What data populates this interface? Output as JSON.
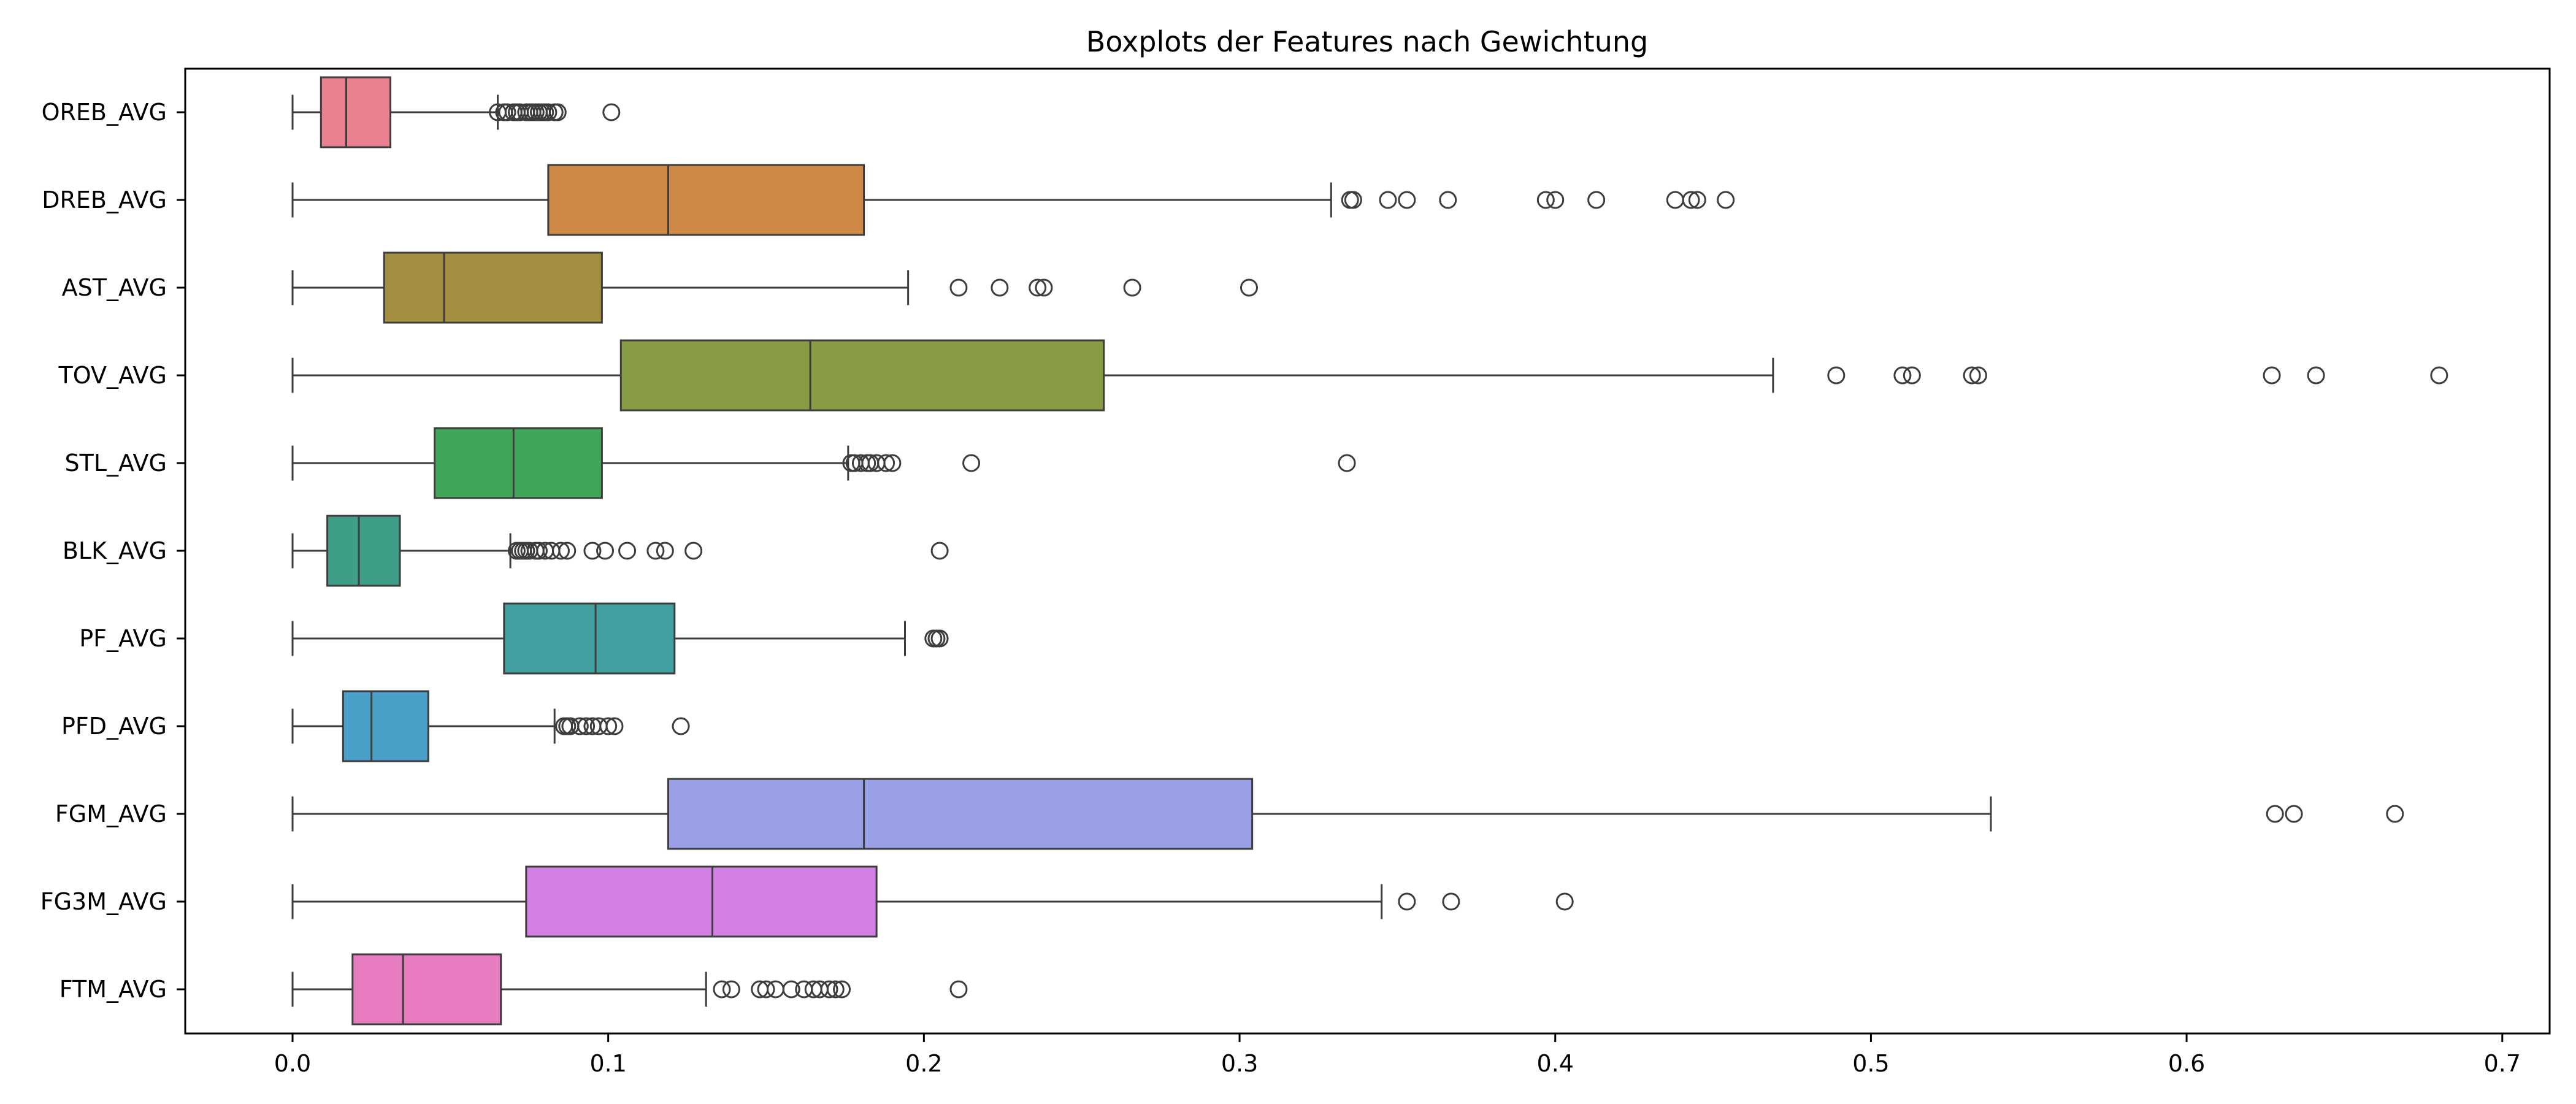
{
  "chart_data": {
    "type": "boxplot",
    "orientation": "horizontal",
    "title": "Boxplots der Features nach Gewichtung",
    "xlabel": "",
    "ylabel": "",
    "xlim": [
      -0.034,
      0.715
    ],
    "xticks": [
      0.0,
      0.1,
      0.2,
      0.3,
      0.4,
      0.5,
      0.6,
      0.7
    ],
    "xtick_labels": [
      "0.0",
      "0.1",
      "0.2",
      "0.3",
      "0.4",
      "0.5",
      "0.6",
      "0.7"
    ],
    "grid": false,
    "categories": [
      "OREB_AVG",
      "DREB_AVG",
      "AST_AVG",
      "TOV_AVG",
      "STL_AVG",
      "BLK_AVG",
      "PF_AVG",
      "PFD_AVG",
      "FGM_AVG",
      "FG3M_AVG",
      "FTM_AVG"
    ],
    "series": [
      {
        "name": "OREB_AVG",
        "color": "#e8808f",
        "whisker_low": 0.0,
        "q1": 0.009,
        "median": 0.017,
        "q3": 0.031,
        "whisker_high": 0.065,
        "outliers": [
          0.065,
          0.067,
          0.068,
          0.07,
          0.071,
          0.072,
          0.074,
          0.075,
          0.076,
          0.077,
          0.078,
          0.079,
          0.08,
          0.081,
          0.083,
          0.084,
          0.101
        ]
      },
      {
        "name": "DREB_AVG",
        "color": "#ce8947",
        "whisker_low": 0.0,
        "q1": 0.081,
        "median": 0.119,
        "q3": 0.181,
        "whisker_high": 0.329,
        "outliers": [
          0.335,
          0.336,
          0.347,
          0.353,
          0.366,
          0.397,
          0.4,
          0.413,
          0.438,
          0.443,
          0.445,
          0.454
        ]
      },
      {
        "name": "AST_AVG",
        "color": "#a38f3f",
        "whisker_low": 0.0,
        "q1": 0.029,
        "median": 0.048,
        "q3": 0.098,
        "whisker_high": 0.195,
        "outliers": [
          0.211,
          0.224,
          0.236,
          0.238,
          0.266,
          0.303
        ]
      },
      {
        "name": "TOV_AVG",
        "color": "#879c43",
        "whisker_low": 0.0,
        "q1": 0.104,
        "median": 0.164,
        "q3": 0.257,
        "whisker_high": 0.469,
        "outliers": [
          0.489,
          0.51,
          0.513,
          0.532,
          0.534,
          0.627,
          0.641,
          0.68
        ]
      },
      {
        "name": "STL_AVG",
        "color": "#42a65a",
        "whisker_low": 0.0,
        "q1": 0.045,
        "median": 0.07,
        "q3": 0.098,
        "whisker_high": 0.176,
        "outliers": [
          0.177,
          0.178,
          0.18,
          0.182,
          0.183,
          0.185,
          0.188,
          0.19,
          0.215,
          0.334
        ]
      },
      {
        "name": "BLK_AVG",
        "color": "#3e9e87",
        "whisker_low": 0.0,
        "q1": 0.011,
        "median": 0.021,
        "q3": 0.034,
        "whisker_high": 0.069,
        "outliers": [
          0.071,
          0.072,
          0.073,
          0.074,
          0.075,
          0.077,
          0.078,
          0.08,
          0.082,
          0.085,
          0.087,
          0.095,
          0.099,
          0.106,
          0.115,
          0.118,
          0.127,
          0.205
        ]
      },
      {
        "name": "PF_AVG",
        "color": "#43a0a1",
        "whisker_low": 0.0,
        "q1": 0.067,
        "median": 0.096,
        "q3": 0.121,
        "whisker_high": 0.194,
        "outliers": [
          0.203,
          0.204,
          0.205
        ]
      },
      {
        "name": "PFD_AVG",
        "color": "#4a9fc8",
        "whisker_low": 0.0,
        "q1": 0.016,
        "median": 0.025,
        "q3": 0.043,
        "whisker_high": 0.083,
        "outliers": [
          0.086,
          0.087,
          0.088,
          0.091,
          0.093,
          0.095,
          0.097,
          0.1,
          0.102,
          0.123
        ]
      },
      {
        "name": "FGM_AVG",
        "color": "#9aa0e6",
        "whisker_low": 0.0,
        "q1": 0.119,
        "median": 0.181,
        "q3": 0.304,
        "whisker_high": 0.538,
        "outliers": [
          0.628,
          0.634,
          0.666
        ]
      },
      {
        "name": "FG3M_AVG",
        "color": "#d280e3",
        "whisker_low": 0.0,
        "q1": 0.074,
        "median": 0.133,
        "q3": 0.185,
        "whisker_high": 0.345,
        "outliers": [
          0.353,
          0.367,
          0.403
        ]
      },
      {
        "name": "FTM_AVG",
        "color": "#e77dc0",
        "whisker_low": 0.0,
        "q1": 0.019,
        "median": 0.035,
        "q3": 0.066,
        "whisker_high": 0.131,
        "outliers": [
          0.136,
          0.139,
          0.148,
          0.15,
          0.153,
          0.158,
          0.162,
          0.165,
          0.167,
          0.17,
          0.172,
          0.174,
          0.211
        ]
      }
    ]
  }
}
